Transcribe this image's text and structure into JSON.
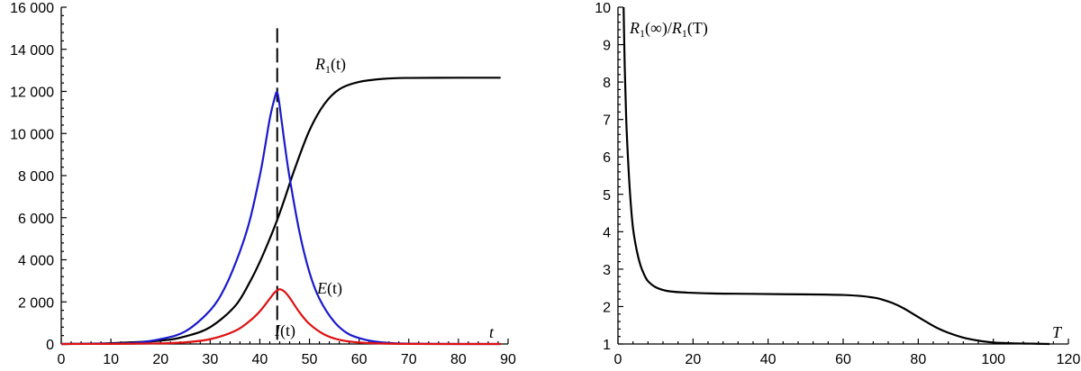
{
  "chart_data": [
    {
      "type": "line",
      "xlabel": "t",
      "ylabel": "",
      "xlim": [
        0,
        90
      ],
      "ylim": [
        0,
        16000
      ],
      "x_ticks": [
        0,
        10,
        20,
        30,
        40,
        50,
        60,
        70,
        80,
        90
      ],
      "x_tick_labels": [
        "0",
        "10",
        "20",
        "30",
        "40",
        "50",
        "60",
        "70",
        "80",
        "90"
      ],
      "y_ticks": [
        0,
        2000,
        4000,
        6000,
        8000,
        10000,
        12000,
        14000,
        16000
      ],
      "y_tick_labels": [
        "0",
        "2 000",
        "4 000",
        "6 000",
        "8 000",
        "10 000",
        "12 000",
        "14 000",
        "16 000"
      ],
      "vline": {
        "x": 43.5,
        "y_max": 15000,
        "style": "dashed",
        "color": "#000000"
      },
      "series": [
        {
          "name": "R1(t)",
          "label_main": "R",
          "label_sub": "1",
          "label_tail": "(t)",
          "color": "#000000",
          "x": [
            0,
            10,
            20,
            25,
            30,
            35,
            38,
            40,
            42,
            43.5,
            45,
            47,
            50,
            53,
            56,
            60,
            65,
            70,
            80,
            88.5
          ],
          "y": [
            0,
            40,
            160,
            360,
            800,
            1800,
            2950,
            3900,
            5000,
            5900,
            6900,
            8300,
            10150,
            11400,
            12100,
            12450,
            12600,
            12640,
            12650,
            12650
          ]
        },
        {
          "name": "E(t)",
          "label_main": "E",
          "label_tail": "(t)",
          "color": "#1a1acc",
          "x": [
            0,
            10,
            15,
            20,
            25,
            30,
            33,
            36,
            38,
            40,
            41,
            42,
            43,
            43.5,
            44,
            45,
            46,
            48,
            50,
            52,
            55,
            58,
            62,
            66,
            70,
            80,
            88.5
          ],
          "y": [
            0,
            20,
            60,
            230,
            600,
            1600,
            2700,
            4400,
            5900,
            8000,
            9300,
            10700,
            11700,
            11950,
            11300,
            9500,
            7900,
            5300,
            3400,
            2150,
            1050,
            460,
            160,
            50,
            15,
            0,
            0
          ]
        },
        {
          "name": "I(t)",
          "label_main": "I",
          "label_tail": "(t)",
          "color": "#dd1111",
          "x": [
            0,
            10,
            20,
            25,
            30,
            35,
            38,
            40,
            42,
            43,
            44,
            45,
            46,
            48,
            50,
            53,
            56,
            60,
            65,
            70,
            80,
            88.5
          ],
          "y": [
            0,
            5,
            30,
            80,
            230,
            620,
            1100,
            1550,
            2150,
            2450,
            2600,
            2480,
            2200,
            1500,
            950,
            450,
            200,
            70,
            20,
            5,
            0,
            0
          ]
        }
      ]
    },
    {
      "type": "line",
      "xlabel": "T",
      "ylabel": "R1(∞)/R1(T)",
      "ylabel_parts": {
        "a_main": "R",
        "a_sub": "1",
        "a_tail": "(∞)/",
        "b_main": "R",
        "b_sub": "1",
        "b_tail": "(T)"
      },
      "xlim": [
        0,
        120
      ],
      "ylim": [
        1,
        10
      ],
      "x_ticks": [
        0,
        20,
        40,
        60,
        80,
        100,
        120
      ],
      "x_tick_labels": [
        "0",
        "20",
        "40",
        "60",
        "80",
        "100",
        "120"
      ],
      "y_ticks": [
        1,
        2,
        3,
        4,
        5,
        6,
        7,
        8,
        9,
        10
      ],
      "y_tick_labels": [
        "1",
        "2",
        "3",
        "4",
        "5",
        "6",
        "7",
        "8",
        "9",
        "10"
      ],
      "series": [
        {
          "color": "#000000",
          "x": [
            1.5,
            1.8,
            2.2,
            2.7,
            3.3,
            4,
            5,
            6,
            7,
            8,
            10,
            13,
            17,
            25,
            35,
            45,
            55,
            60,
            65,
            68,
            70,
            73,
            76,
            79,
            82,
            85,
            88,
            92,
            96,
            100,
            105,
            110,
            115
          ],
          "y": [
            10,
            8.4,
            7.0,
            5.9,
            4.9,
            4.1,
            3.5,
            3.1,
            2.85,
            2.68,
            2.52,
            2.42,
            2.38,
            2.35,
            2.34,
            2.33,
            2.32,
            2.31,
            2.28,
            2.24,
            2.2,
            2.1,
            1.96,
            1.78,
            1.6,
            1.43,
            1.3,
            1.17,
            1.09,
            1.04,
            1.02,
            1.01,
            1.0
          ]
        }
      ]
    }
  ]
}
